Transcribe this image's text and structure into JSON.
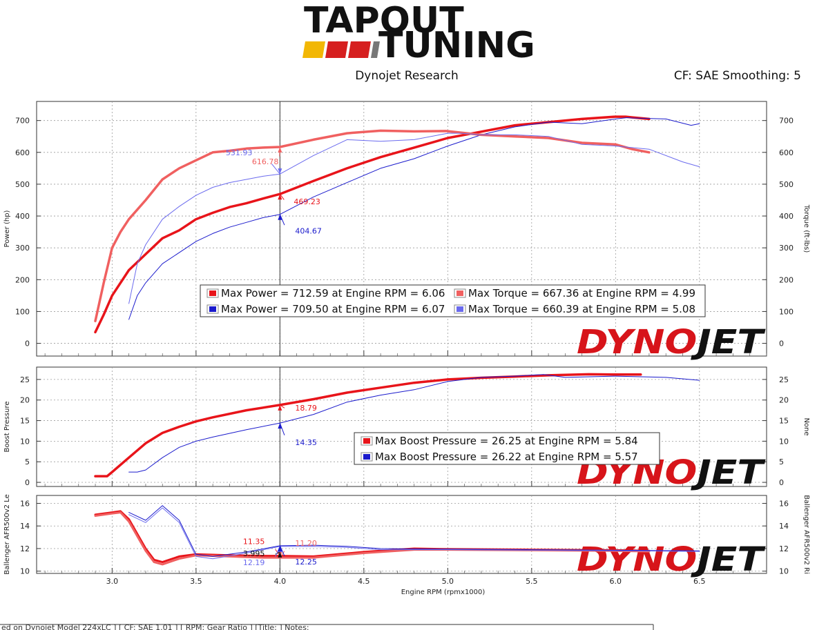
{
  "header": {
    "logo_line1": "TAPOUT",
    "logo_line2": "TUNING",
    "logo_colors": [
      "#f2b705",
      "#d61f1f",
      "#d61f1f",
      "#777777",
      "#777777"
    ],
    "subtitle": "Dynojet Research",
    "right_info": "CF: SAE Smoothing: 5"
  },
  "watermark": {
    "text": "DYNOJET",
    "color_dyno": "#d7141a",
    "color_jet": "#111111"
  },
  "colors": {
    "run1_dark": "#e8141a",
    "run1_light": "#f06060",
    "run2_dark": "#1a1acc",
    "run2_light": "#6a6aee",
    "grid": "#999999",
    "cursor": "#333333"
  },
  "footer": {
    "text": "ed on Dynojet Model 224xLC ] [ CF: SAE 1.01 ] [ RPM: Gear Ratio ] [Title: ] Notes:"
  },
  "chart_data": [
    {
      "type": "line",
      "title": "",
      "xlabel": "Engine RPM (rpmx1000)",
      "xlim": [
        2.55,
        6.9
      ],
      "x_ticks": [
        "3.0",
        "3.5",
        "4.0",
        "4.5",
        "5.0",
        "5.5",
        "6.0",
        "6.5"
      ],
      "ylabel": "Power (hp)",
      "ylim": [
        -40,
        760
      ],
      "y_ticks": [
        "0",
        "100",
        "200",
        "300",
        "400",
        "500",
        "600",
        "700"
      ],
      "y2label": "Torque (ft-lbs)",
      "y2_ticks": [
        "0",
        "100",
        "200",
        "300",
        "400",
        "500",
        "600",
        "700"
      ],
      "grid": true,
      "cursor_x": 4.0,
      "series": [
        {
          "name": "Power run 1",
          "color": "#e8141a",
          "width": 3.5,
          "x": [
            2.9,
            2.95,
            3.0,
            3.1,
            3.2,
            3.3,
            3.4,
            3.5,
            3.6,
            3.7,
            3.8,
            3.9,
            4.0,
            4.2,
            4.4,
            4.6,
            4.8,
            5.0,
            5.2,
            5.4,
            5.6,
            5.8,
            6.0,
            6.06,
            6.1,
            6.2
          ],
          "y": [
            35,
            90,
            150,
            230,
            280,
            330,
            355,
            390,
            410,
            428,
            440,
            455,
            469,
            510,
            550,
            585,
            615,
            645,
            665,
            685,
            695,
            705,
            712,
            712,
            710,
            705
          ]
        },
        {
          "name": "Power run 2",
          "color": "#1a1acc",
          "width": 1,
          "x": [
            3.1,
            3.15,
            3.2,
            3.3,
            3.4,
            3.5,
            3.6,
            3.7,
            3.8,
            3.9,
            4.0,
            4.2,
            4.4,
            4.6,
            4.8,
            5.0,
            5.2,
            5.4,
            5.6,
            5.8,
            6.0,
            6.07,
            6.1,
            6.3,
            6.45,
            6.5
          ],
          "y": [
            75,
            150,
            190,
            250,
            285,
            320,
            345,
            365,
            380,
            395,
            405,
            460,
            505,
            550,
            580,
            620,
            655,
            680,
            695,
            690,
            705,
            709,
            708,
            705,
            685,
            690
          ]
        },
        {
          "name": "Torque run 1",
          "color": "#f06060",
          "width": 3.5,
          "x": [
            2.9,
            2.95,
            3.0,
            3.05,
            3.1,
            3.2,
            3.3,
            3.4,
            3.5,
            3.6,
            3.7,
            3.8,
            3.9,
            4.0,
            4.2,
            4.4,
            4.6,
            4.8,
            4.99,
            5.2,
            5.4,
            5.6,
            5.8,
            6.0,
            6.1,
            6.2
          ],
          "y": [
            70,
            190,
            300,
            350,
            390,
            450,
            515,
            550,
            575,
            600,
            605,
            612,
            615,
            617,
            640,
            660,
            668,
            666,
            667,
            655,
            650,
            645,
            630,
            625,
            610,
            600
          ]
        },
        {
          "name": "Torque run 2",
          "color": "#6a6aee",
          "width": 1,
          "x": [
            3.1,
            3.15,
            3.2,
            3.3,
            3.4,
            3.5,
            3.6,
            3.7,
            3.8,
            3.9,
            4.0,
            4.2,
            4.4,
            4.6,
            4.8,
            5.0,
            5.08,
            5.2,
            5.4,
            5.6,
            5.8,
            6.0,
            6.2,
            6.4,
            6.5
          ],
          "y": [
            125,
            250,
            310,
            390,
            430,
            465,
            490,
            505,
            515,
            525,
            532,
            590,
            640,
            635,
            640,
            660,
            660,
            655,
            655,
            650,
            625,
            620,
            610,
            570,
            555
          ]
        }
      ],
      "annotations": [
        {
          "text": "531.93",
          "x": 4.0,
          "y": 532,
          "color": "#6a6aee"
        },
        {
          "text": "616.78",
          "x": 4.0,
          "y": 617,
          "color": "#f06060"
        },
        {
          "text": "469.23",
          "x": 4.0,
          "y": 469,
          "color": "#e8141a"
        },
        {
          "text": "404.67",
          "x": 4.0,
          "y": 405,
          "color": "#1a1acc"
        }
      ],
      "legend": [
        {
          "text": "Max Power = 712.59 at Engine RPM = 6.06",
          "color": "#e8141a"
        },
        {
          "text": "Max Torque = 667.36 at Engine RPM = 4.99",
          "color": "#f06060"
        },
        {
          "text": "Max Power = 709.50 at Engine RPM = 6.07",
          "color": "#1a1acc"
        },
        {
          "text": "Max Torque = 660.39 at Engine RPM = 5.08",
          "color": "#6a6aee"
        }
      ]
    },
    {
      "type": "line",
      "title": "",
      "xlabel": "",
      "xlim": [
        2.55,
        6.9
      ],
      "ylabel": "Boost Pressure",
      "ylim": [
        -1,
        28
      ],
      "y_ticks": [
        "0",
        "5",
        "10",
        "15",
        "20",
        "25"
      ],
      "y2label": "None",
      "y2_ticks": [
        "0",
        "5",
        "10",
        "15",
        "20",
        "25"
      ],
      "grid": true,
      "cursor_x": 4.0,
      "series": [
        {
          "name": "Boost run 1",
          "color": "#e8141a",
          "width": 3.5,
          "x": [
            2.9,
            2.97,
            3.0,
            3.1,
            3.2,
            3.3,
            3.4,
            3.5,
            3.6,
            3.8,
            4.0,
            4.2,
            4.4,
            4.6,
            4.8,
            5.0,
            5.2,
            5.4,
            5.6,
            5.84,
            6.0,
            6.15
          ],
          "y": [
            1.5,
            1.5,
            2.5,
            6,
            9.5,
            12,
            13.5,
            14.8,
            15.8,
            17.5,
            18.8,
            20.2,
            21.8,
            23,
            24.2,
            25,
            25.4,
            25.7,
            26,
            26.25,
            26.2,
            26.2
          ]
        },
        {
          "name": "Boost run 2",
          "color": "#1a1acc",
          "width": 1,
          "x": [
            3.1,
            3.15,
            3.2,
            3.3,
            3.4,
            3.5,
            3.6,
            3.8,
            4.0,
            4.2,
            4.4,
            4.6,
            4.8,
            5.0,
            5.2,
            5.4,
            5.57,
            5.7,
            6.0,
            6.3,
            6.5
          ],
          "y": [
            2.5,
            2.5,
            3,
            6,
            8.5,
            10,
            11,
            12.8,
            14.4,
            16.5,
            19.5,
            21.2,
            22.5,
            24.5,
            25.5,
            25.8,
            26.2,
            25.5,
            25.8,
            25.5,
            24.8
          ]
        }
      ],
      "annotations": [
        {
          "text": "18.79",
          "x": 4.0,
          "y": 18.8,
          "color": "#e8141a"
        },
        {
          "text": "14.35",
          "x": 4.0,
          "y": 14.4,
          "color": "#1a1acc"
        }
      ],
      "legend": [
        {
          "text": "Max Boost Pressure = 26.25 at Engine RPM = 5.84",
          "color": "#e8141a"
        },
        {
          "text": "Max Boost Pressure = 26.22 at Engine RPM = 5.57",
          "color": "#1a1acc"
        }
      ]
    },
    {
      "type": "line",
      "title": "",
      "xlabel": "Engine RPM (rpmx1000)",
      "xlim": [
        2.55,
        6.9
      ],
      "x_ticks": [
        "3.0",
        "3.5",
        "4.0",
        "4.5",
        "5.0",
        "5.5",
        "6.0",
        "6.5"
      ],
      "ylabel": "Ballenger AFR500v2 Le",
      "ylim": [
        9.8,
        16.7
      ],
      "y_ticks": [
        "10",
        "12",
        "14",
        "16"
      ],
      "y2label": "Ballenger AFR500v2 Ri",
      "y2_ticks": [
        "10",
        "12",
        "14",
        "16"
      ],
      "grid": true,
      "cursor_x": 4.0,
      "series": [
        {
          "name": "AFR left run 1",
          "color": "#e8141a",
          "width": 3,
          "x": [
            2.9,
            3.0,
            3.05,
            3.1,
            3.2,
            3.25,
            3.3,
            3.4,
            3.5,
            3.7,
            3.9,
            4.0,
            4.2,
            4.5,
            4.8,
            5.0,
            5.5,
            6.0,
            6.2
          ],
          "y": [
            15,
            15.2,
            15.3,
            14.6,
            12,
            11,
            10.8,
            11.3,
            11.5,
            11.4,
            11.35,
            11.35,
            11.3,
            11.7,
            12,
            11.95,
            11.9,
            11.85,
            11.8
          ]
        },
        {
          "name": "AFR right run 1",
          "color": "#f06060",
          "width": 3,
          "x": [
            2.9,
            3.0,
            3.05,
            3.1,
            3.2,
            3.25,
            3.3,
            3.4,
            3.5,
            3.7,
            3.9,
            4.0,
            4.2,
            4.5,
            4.8,
            5.0,
            5.5,
            6.0,
            6.2
          ],
          "y": [
            14.9,
            15.1,
            15.2,
            14.4,
            11.8,
            10.8,
            10.6,
            11.1,
            11.4,
            11.3,
            11.2,
            11.2,
            11.2,
            11.6,
            11.9,
            11.9,
            11.85,
            11.8,
            11.75
          ]
        },
        {
          "name": "AFR left run 2",
          "color": "#1a1acc",
          "width": 1,
          "x": [
            3.1,
            3.2,
            3.3,
            3.4,
            3.5,
            3.6,
            3.8,
            4.0,
            4.2,
            4.4,
            4.6,
            5.0,
            5.5,
            6.0,
            6.5
          ],
          "y": [
            15.2,
            14.5,
            15.8,
            14.5,
            11.5,
            11.3,
            11.7,
            12.25,
            12.3,
            12.2,
            12.0,
            11.95,
            11.9,
            11.85,
            11.8
          ]
        },
        {
          "name": "AFR right run 2",
          "color": "#6a6aee",
          "width": 1,
          "x": [
            3.1,
            3.2,
            3.3,
            3.4,
            3.5,
            3.6,
            3.8,
            4.0,
            4.2,
            4.4,
            4.6,
            5.0,
            5.5,
            6.0,
            6.5
          ],
          "y": [
            15.0,
            14.3,
            15.6,
            14.3,
            11.3,
            11.1,
            11.6,
            12.19,
            12.2,
            12.1,
            11.9,
            11.9,
            11.85,
            11.8,
            11.75
          ]
        }
      ],
      "annotations": [
        {
          "text": "11.35",
          "x": 4.0,
          "y": 11.35,
          "color": "#e8141a"
        },
        {
          "text": "11.20",
          "x": 4.0,
          "y": 11.2,
          "color": "#f06060"
        },
        {
          "text": "3.995",
          "x": 4.0,
          "y": 11.7,
          "color": "#111111"
        },
        {
          "text": "12.19",
          "x": 4.0,
          "y": 12.19,
          "color": "#6a6aee"
        },
        {
          "text": "12.25",
          "x": 4.0,
          "y": 12.25,
          "color": "#1a1acc"
        }
      ]
    }
  ]
}
